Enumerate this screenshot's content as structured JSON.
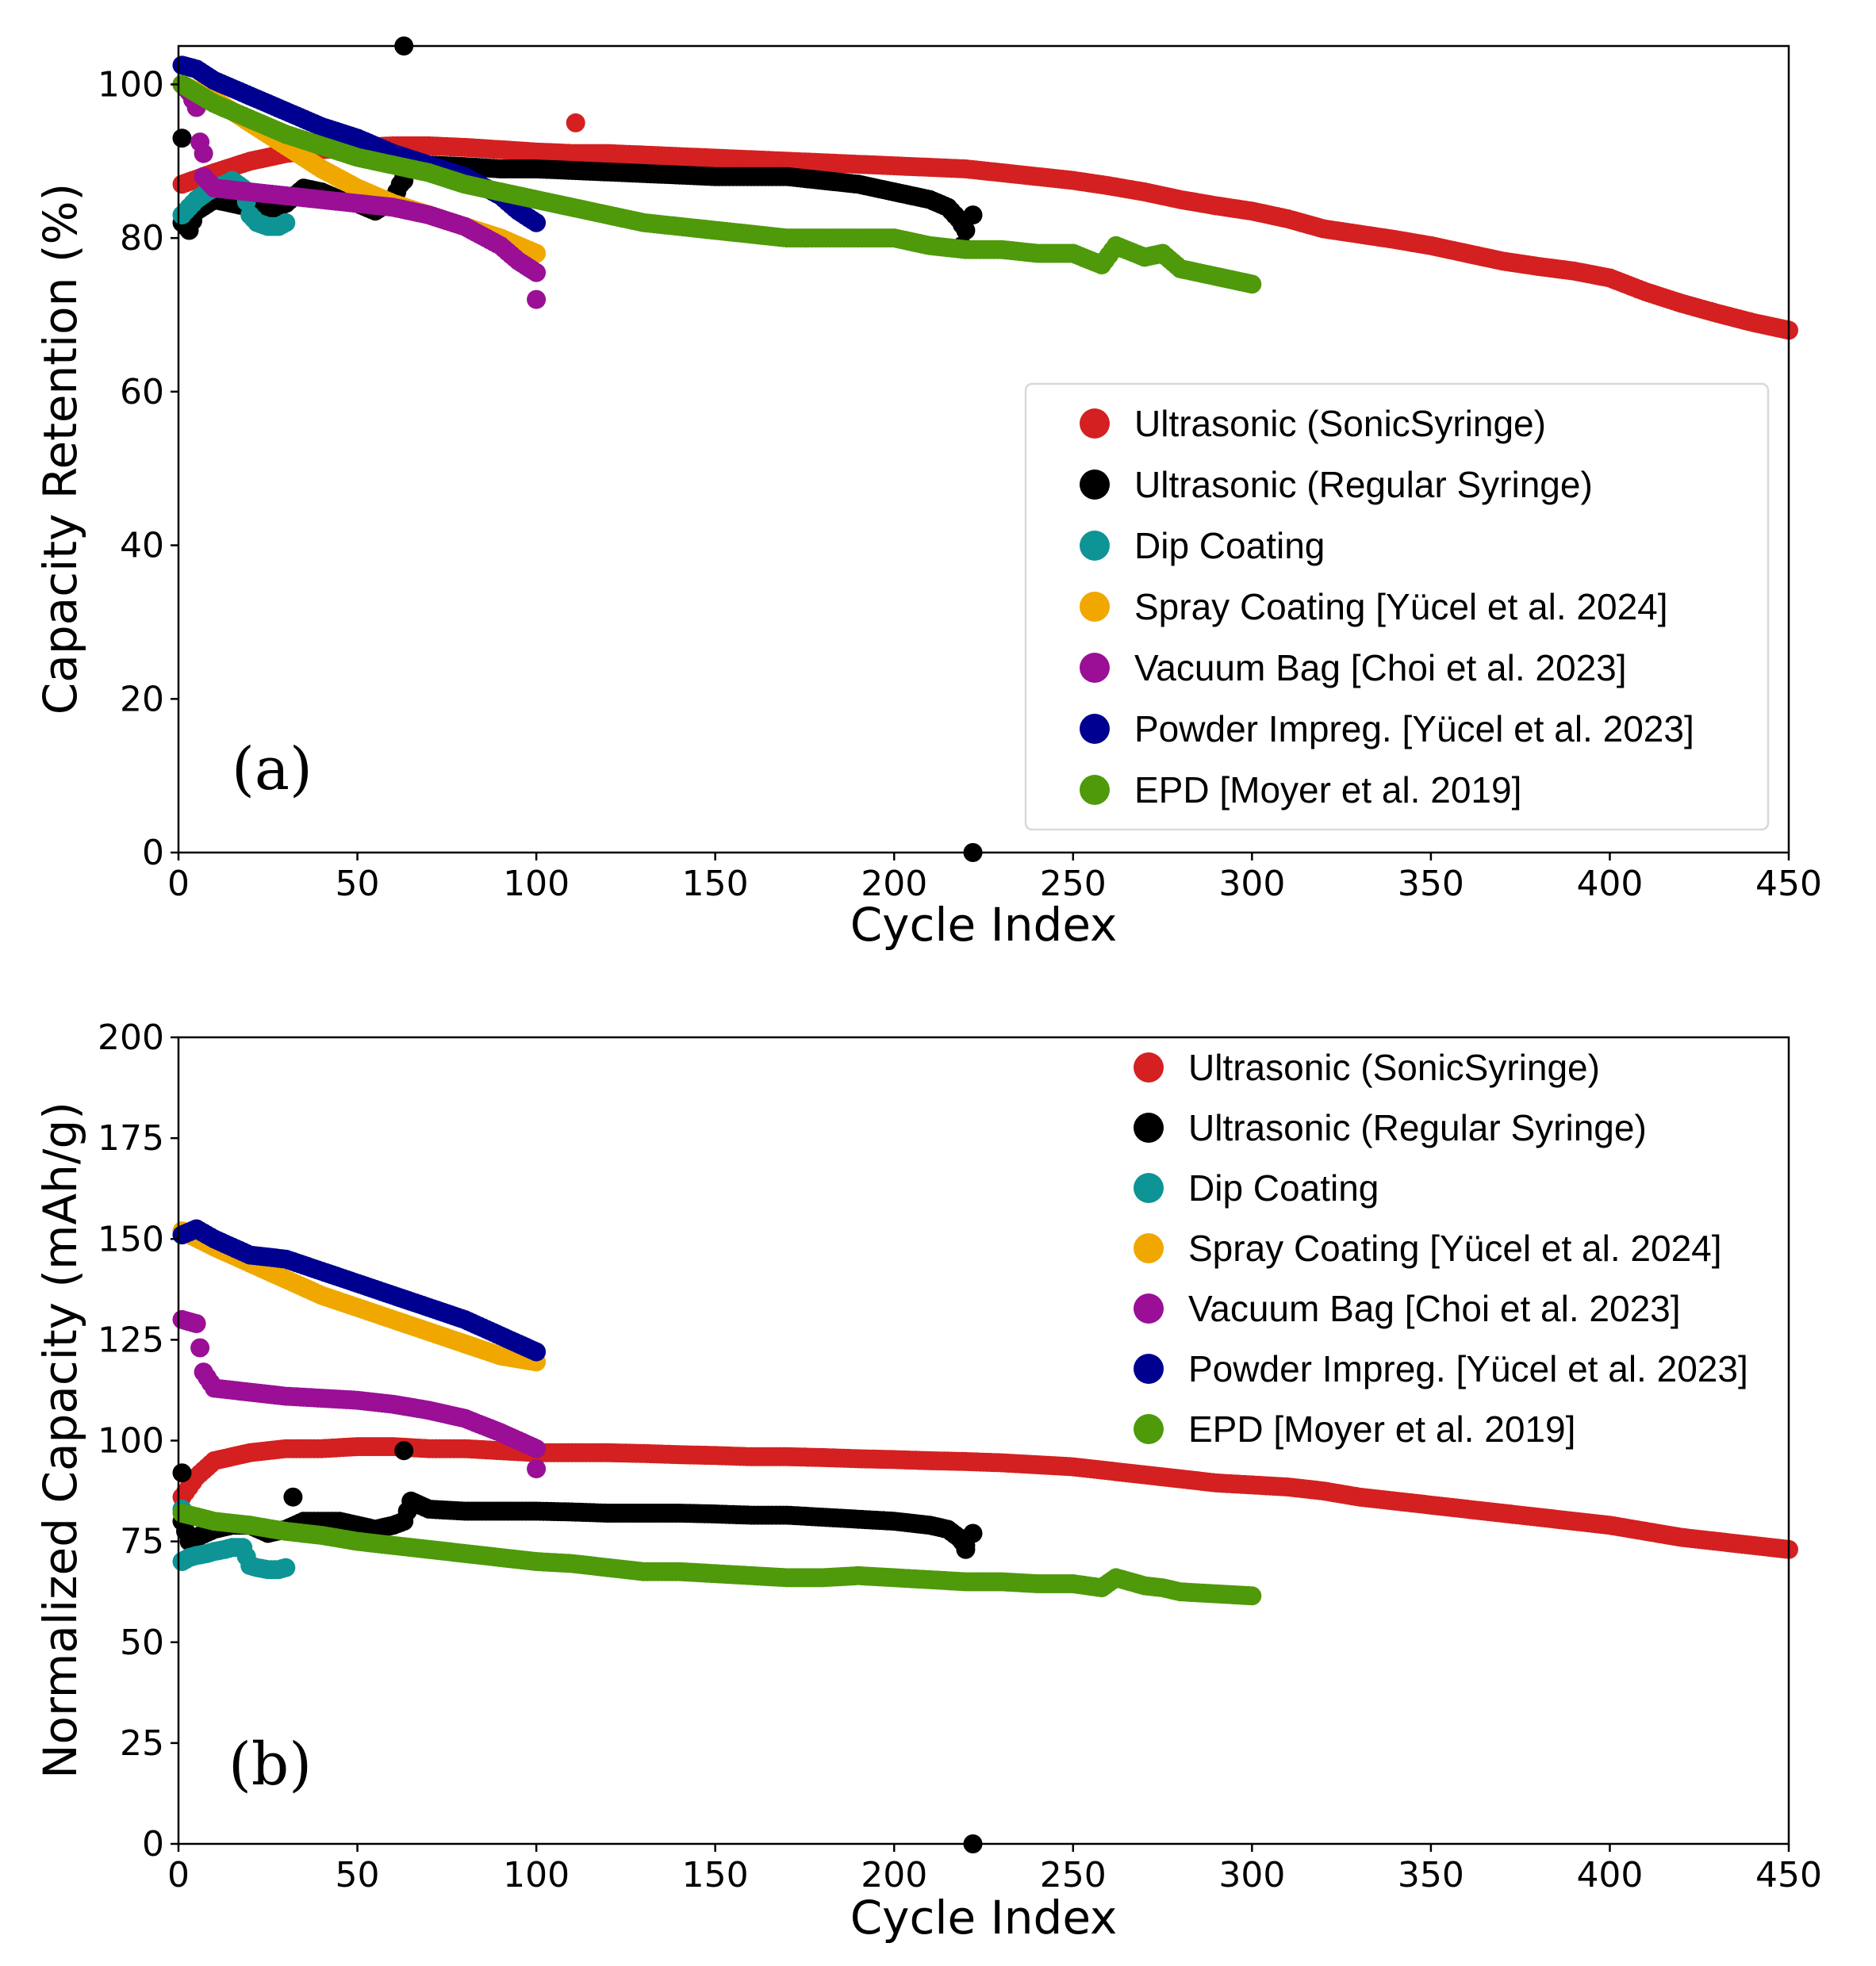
{
  "colors": {
    "sonic": "#d42020",
    "regular": "#000000",
    "dip": "#0e9494",
    "spray": "#f0a800",
    "vacuum": "#9a0f96",
    "powder": "#000090",
    "epd": "#4e9a0a"
  },
  "legend": [
    {
      "key": "sonic",
      "label": "Ultrasonic (SonicSyringe)"
    },
    {
      "key": "regular",
      "label": "Ultrasonic (Regular Syringe)"
    },
    {
      "key": "dip",
      "label": "Dip Coating"
    },
    {
      "key": "spray",
      "label": "Spray Coating [Yücel et al. 2024]"
    },
    {
      "key": "vacuum",
      "label": "Vacuum Bag [Choi et al. 2023]"
    },
    {
      "key": "powder",
      "label": "Powder Impreg. [Yücel et al. 2023]"
    },
    {
      "key": "epd",
      "label": "EPD [Moyer et al. 2019]"
    }
  ],
  "chart_data": [
    {
      "type": "scatter",
      "panel_label": "(a)",
      "xlabel": "Cycle Index",
      "ylabel": "Capacity Retention (%)",
      "xlim": [
        0,
        450
      ],
      "ylim": [
        0,
        105
      ],
      "xticks": [
        0,
        50,
        100,
        150,
        200,
        250,
        300,
        350,
        400,
        450
      ],
      "yticks": [
        0,
        20,
        40,
        60,
        80,
        100
      ],
      "grid": false,
      "legend_position": "center-right",
      "legend_frame": true,
      "series": [
        {
          "key": "sonic",
          "name": "Ultrasonic (SonicSyringe)",
          "x": [
            1,
            10,
            20,
            30,
            40,
            50,
            60,
            70,
            80,
            90,
            100,
            110,
            120,
            130,
            140,
            150,
            160,
            170,
            180,
            190,
            200,
            210,
            220,
            230,
            240,
            250,
            260,
            270,
            280,
            290,
            300,
            310,
            320,
            330,
            340,
            350,
            360,
            370,
            380,
            390,
            400,
            410,
            420,
            430,
            440,
            450
          ],
          "y": [
            87,
            88.5,
            90,
            91,
            91.5,
            91.8,
            92,
            92,
            91.8,
            91.5,
            91.2,
            91,
            91,
            90.8,
            90.6,
            90.4,
            90.2,
            90,
            89.8,
            89.6,
            89.4,
            89.2,
            89,
            88.5,
            88,
            87.5,
            86.8,
            86,
            85,
            84.2,
            83.5,
            82.5,
            81.2,
            80.5,
            79.8,
            79,
            78,
            77,
            76.3,
            75.7,
            74.8,
            73,
            71.5,
            70.2,
            69,
            68
          ],
          "outliers": [
            [
              111,
              95
            ]
          ]
        },
        {
          "key": "regular",
          "name": "Ultrasonic (Regular Syringe)",
          "x": [
            1,
            3,
            5,
            10,
            15,
            20,
            25,
            30,
            35,
            40,
            45,
            50,
            55,
            60,
            65,
            70,
            80,
            90,
            100,
            110,
            120,
            130,
            140,
            150,
            160,
            170,
            180,
            190,
            200,
            205,
            210,
            215,
            218,
            220
          ],
          "y": [
            82,
            81,
            83.5,
            85,
            84.5,
            84,
            83.5,
            84.5,
            86.5,
            86,
            85,
            84.5,
            83.5,
            85,
            90,
            89.5,
            89.3,
            89,
            89,
            88.8,
            88.6,
            88.4,
            88.2,
            88,
            88,
            88,
            87.5,
            87,
            86,
            85.5,
            85,
            84,
            82.5,
            81
          ],
          "outliers": [
            [
              1,
              93
            ],
            [
              63,
              105
            ],
            [
              63,
              87.5
            ],
            [
              222,
              0
            ],
            [
              222,
              83
            ],
            [
              219,
              79
            ]
          ]
        },
        {
          "key": "dip",
          "name": "Dip Coating",
          "x": [
            1,
            3,
            5,
            8,
            10,
            13,
            15,
            18,
            20,
            22,
            25,
            28,
            30
          ],
          "y": [
            83,
            84,
            85,
            86,
            86.5,
            87,
            87.5,
            86.5,
            83,
            82,
            81.5,
            81.5,
            82
          ]
        },
        {
          "key": "spray",
          "name": "Spray Coating [Yücel et al. 2024]",
          "x": [
            1,
            10,
            20,
            30,
            40,
            50,
            60,
            70,
            80,
            90,
            100
          ],
          "y": [
            100,
            98,
            95,
            92,
            89,
            86.5,
            84.5,
            83,
            81.5,
            80,
            78
          ]
        },
        {
          "key": "vacuum",
          "name": "Vacuum Bag [Choi et al. 2023]",
          "x": [
            1,
            3,
            5,
            7,
            10,
            20,
            30,
            40,
            50,
            60,
            70,
            80,
            90,
            95,
            100
          ],
          "y": [
            100,
            99,
            97,
            88,
            86.5,
            86,
            85.5,
            85,
            84.5,
            84,
            83,
            81.5,
            79,
            77,
            75.5
          ],
          "outliers": [
            [
              100,
              72
            ],
            [
              7,
              91
            ]
          ]
        },
        {
          "key": "powder",
          "name": "Powder Impreg. [Yücel et al. 2023]",
          "x": [
            1,
            5,
            10,
            20,
            30,
            40,
            50,
            60,
            70,
            80,
            90,
            95,
            100
          ],
          "y": [
            102.5,
            102,
            100.5,
            98.5,
            96.5,
            94.5,
            93,
            91,
            89.5,
            88,
            85.5,
            83.5,
            82
          ]
        },
        {
          "key": "epd",
          "name": "EPD [Moyer et al. 2019]",
          "x": [
            1,
            10,
            20,
            30,
            40,
            50,
            60,
            70,
            80,
            90,
            100,
            110,
            120,
            130,
            140,
            150,
            160,
            170,
            180,
            190,
            200,
            210,
            220,
            230,
            240,
            250,
            258,
            262,
            270,
            275,
            280,
            290,
            300
          ],
          "y": [
            100,
            97.5,
            95.5,
            93.5,
            92,
            90.5,
            89.5,
            88.5,
            87,
            86,
            85,
            84,
            83,
            82,
            81.5,
            81,
            80.5,
            80,
            80,
            80,
            80,
            79,
            78.5,
            78.5,
            78,
            78,
            76.5,
            79,
            77.5,
            78,
            76,
            75,
            74
          ]
        }
      ]
    },
    {
      "type": "scatter",
      "panel_label": "(b)",
      "xlabel": "Cycle Index",
      "ylabel": "Normalized Capacity (mAh/g)",
      "xlim": [
        0,
        450
      ],
      "ylim": [
        0,
        200
      ],
      "xticks": [
        0,
        50,
        100,
        150,
        200,
        250,
        300,
        350,
        400,
        450
      ],
      "yticks": [
        0,
        25,
        50,
        75,
        100,
        125,
        150,
        175,
        200
      ],
      "grid": false,
      "legend_position": "top-right",
      "legend_frame": false,
      "series": [
        {
          "key": "sonic",
          "name": "Ultrasonic (SonicSyringe)",
          "x": [
            1,
            5,
            10,
            20,
            30,
            40,
            50,
            60,
            70,
            80,
            90,
            100,
            110,
            120,
            130,
            140,
            150,
            160,
            170,
            180,
            190,
            200,
            210,
            220,
            230,
            240,
            250,
            260,
            270,
            280,
            290,
            300,
            310,
            320,
            330,
            340,
            350,
            360,
            370,
            380,
            390,
            400,
            410,
            420,
            430,
            440,
            450
          ],
          "y": [
            86,
            91,
            95,
            97,
            98,
            98,
            98.5,
            98.5,
            98,
            98,
            97.5,
            97,
            97,
            97,
            96.8,
            96.5,
            96.3,
            96,
            96,
            95.8,
            95.5,
            95.3,
            95,
            94.8,
            94.5,
            94,
            93.5,
            92.5,
            91.5,
            90.5,
            89.5,
            89,
            88.5,
            87.5,
            86,
            85,
            84,
            83,
            82,
            81,
            80,
            79,
            77.5,
            76,
            75,
            74,
            73
          ]
        },
        {
          "key": "regular",
          "name": "Ultrasonic (Regular Syringe)",
          "x": [
            1,
            3,
            5,
            10,
            15,
            20,
            25,
            30,
            35,
            40,
            45,
            50,
            55,
            60,
            63,
            65,
            70,
            80,
            90,
            100,
            110,
            120,
            130,
            140,
            150,
            160,
            170,
            180,
            190,
            200,
            205,
            210,
            215,
            218,
            220
          ],
          "y": [
            80,
            75,
            76,
            78,
            79,
            79,
            77,
            78,
            80,
            80,
            80,
            79,
            78,
            79,
            80,
            85,
            83,
            82.5,
            82.5,
            82.5,
            82.3,
            82,
            82,
            82,
            81.8,
            81.5,
            81.5,
            81,
            80.5,
            80,
            79.5,
            79,
            78,
            76,
            74
          ],
          "outliers": [
            [
              1,
              92
            ],
            [
              63,
              97.5
            ],
            [
              32,
              86
            ],
            [
              222,
              0
            ],
            [
              222,
              77
            ],
            [
              220,
              73
            ]
          ]
        },
        {
          "key": "dip",
          "name": "Dip Coating",
          "x": [
            1,
            3,
            5,
            8,
            10,
            13,
            15,
            18,
            20,
            22,
            25,
            28,
            30
          ],
          "y": [
            70,
            71,
            71.5,
            72,
            72.5,
            73,
            73.5,
            73.5,
            69,
            68.5,
            68,
            68,
            68.5
          ],
          "outliers": [
            [
              1,
              83
            ]
          ]
        },
        {
          "key": "spray",
          "name": "Spray Coating [Yücel et al. 2024]",
          "x": [
            1,
            10,
            20,
            30,
            40,
            50,
            60,
            70,
            80,
            90,
            100
          ],
          "y": [
            152,
            148,
            144,
            140,
            136,
            133,
            130,
            127,
            124,
            121,
            119.5
          ]
        },
        {
          "key": "vacuum",
          "name": "Vacuum Bag [Choi et al. 2023]",
          "x": [
            1,
            3,
            5,
            7,
            10,
            20,
            30,
            40,
            50,
            60,
            70,
            80,
            90,
            95,
            100
          ],
          "y": [
            130,
            129.5,
            129,
            117,
            113,
            112,
            111,
            110.5,
            110,
            109,
            107.5,
            105.5,
            102,
            100,
            98
          ],
          "outliers": [
            [
              100,
              93
            ]
          ]
        },
        {
          "key": "powder",
          "name": "Powder Impreg. [Yücel et al. 2023]",
          "x": [
            1,
            5,
            10,
            20,
            30,
            40,
            50,
            60,
            70,
            80,
            90,
            95,
            100
          ],
          "y": [
            151,
            152.5,
            150,
            146,
            145,
            142,
            139,
            136,
            133,
            130,
            126,
            124,
            122
          ]
        },
        {
          "key": "epd",
          "name": "EPD [Moyer et al. 2019]",
          "x": [
            1,
            10,
            20,
            30,
            40,
            50,
            60,
            70,
            80,
            90,
            100,
            110,
            120,
            130,
            140,
            150,
            160,
            170,
            180,
            190,
            200,
            210,
            220,
            230,
            240,
            250,
            258,
            262,
            270,
            275,
            280,
            290,
            300
          ],
          "y": [
            82,
            80,
            79,
            77.5,
            76.5,
            75,
            74,
            73,
            72,
            71,
            70,
            69.5,
            68.5,
            67.5,
            67.5,
            67,
            66.5,
            66,
            66,
            66.5,
            66,
            65.5,
            65,
            65,
            64.5,
            64.5,
            63.5,
            66,
            64,
            63.5,
            62.5,
            62,
            61.5
          ]
        }
      ]
    }
  ]
}
